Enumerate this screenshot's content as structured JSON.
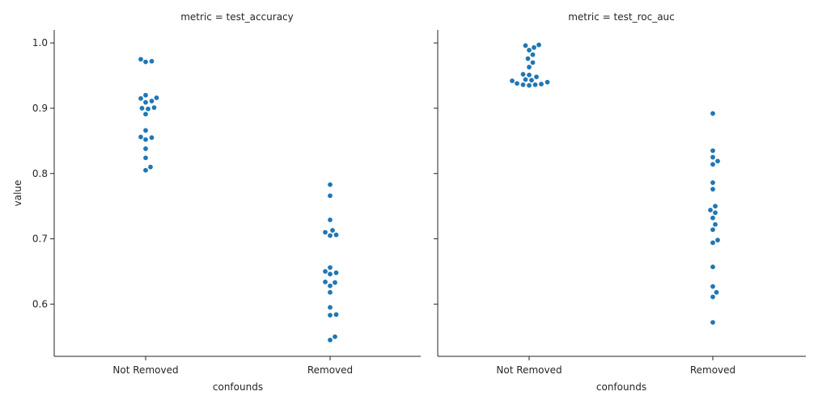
{
  "chart_data": {
    "type": "scatter",
    "kind": "swarm",
    "ylabel": "value",
    "xlabel": "confounds",
    "categories": [
      "Not Removed",
      "Removed"
    ],
    "ylim": [
      0.52,
      1.02
    ],
    "yticks": [
      0.6,
      0.7,
      0.8,
      0.9,
      1.0
    ],
    "ytick_labels": [
      "0.6",
      "0.7",
      "0.8",
      "0.9",
      "1.0"
    ],
    "grid": false,
    "legend": "none",
    "point_color": "#1f77b4",
    "panels": [
      {
        "title": "metric = test_accuracy",
        "series": [
          {
            "category": "Not Removed",
            "values": [
              0.975,
              0.972,
              0.971,
              0.92,
              0.916,
              0.915,
              0.911,
              0.909,
              0.901,
              0.9,
              0.899,
              0.891,
              0.866,
              0.856,
              0.855,
              0.852,
              0.838,
              0.824,
              0.81,
              0.805
            ]
          },
          {
            "category": "Removed",
            "values": [
              0.783,
              0.766,
              0.729,
              0.713,
              0.71,
              0.706,
              0.705,
              0.656,
              0.65,
              0.648,
              0.646,
              0.634,
              0.633,
              0.628,
              0.618,
              0.595,
              0.584,
              0.583,
              0.55,
              0.545
            ]
          }
        ]
      },
      {
        "title": "metric = test_roc_auc",
        "series": [
          {
            "category": "Not Removed",
            "values": [
              0.997,
              0.996,
              0.993,
              0.989,
              0.982,
              0.976,
              0.97,
              0.963,
              0.952,
              0.951,
              0.948,
              0.944,
              0.943,
              0.942,
              0.94,
              0.938,
              0.937,
              0.936,
              0.936,
              0.935
            ]
          },
          {
            "category": "Removed",
            "values": [
              0.892,
              0.835,
              0.825,
              0.819,
              0.814,
              0.786,
              0.776,
              0.75,
              0.744,
              0.74,
              0.732,
              0.722,
              0.714,
              0.698,
              0.694,
              0.657,
              0.627,
              0.618,
              0.611,
              0.572
            ]
          }
        ]
      }
    ]
  }
}
